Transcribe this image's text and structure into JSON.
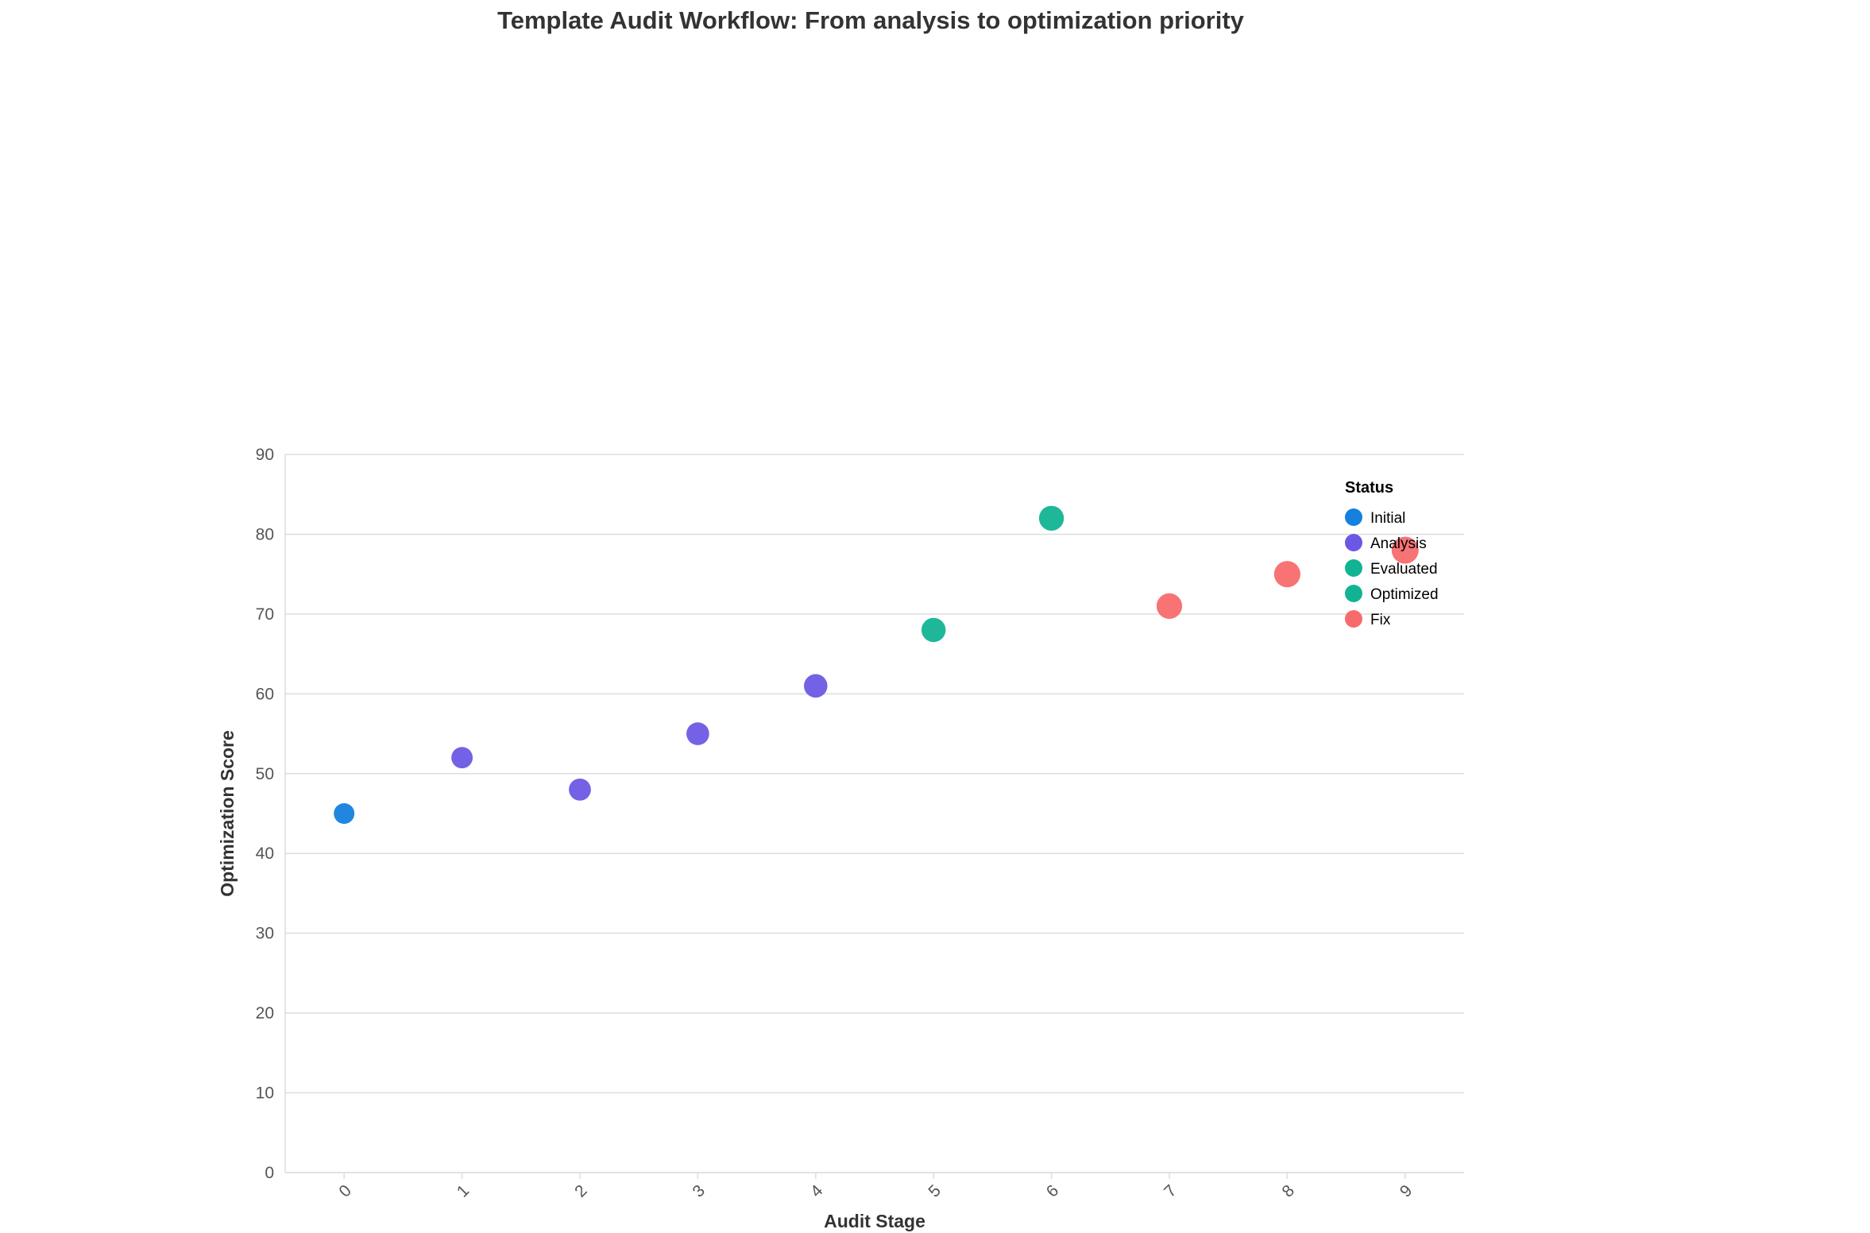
{
  "chart_data": {
    "type": "scatter",
    "title": "Template Audit Workflow: From analysis to optimization priority",
    "xlabel": "Audit Stage",
    "ylabel": "Optimization Score",
    "x_ticks": [
      "0",
      "1",
      "2",
      "3",
      "4",
      "5",
      "6",
      "7",
      "8",
      "9"
    ],
    "y_ticks": [
      "0",
      "10",
      "20",
      "30",
      "40",
      "50",
      "60",
      "70",
      "80",
      "90"
    ],
    "xlim": [
      -0.5,
      9.5
    ],
    "ylim": [
      0,
      90
    ],
    "grid": true,
    "legend": {
      "title": "Status",
      "placement": "top-right",
      "entries": [
        {
          "label": "Initial",
          "color": "#1580dd"
        },
        {
          "label": "Analysis",
          "color": "#6b58e5"
        },
        {
          "label": "Evaluated",
          "color": "#12b393"
        },
        {
          "label": "Optimized",
          "color": "#12b393"
        },
        {
          "label": "Fix",
          "color": "#f76b6d"
        }
      ]
    },
    "points": [
      {
        "x": 0,
        "y": 45,
        "status": "Initial",
        "color": "#1580dd"
      },
      {
        "x": 1,
        "y": 52,
        "status": "Analysis",
        "color": "#6b58e5"
      },
      {
        "x": 2,
        "y": 48,
        "status": "Analysis",
        "color": "#6b58e5"
      },
      {
        "x": 3,
        "y": 55,
        "status": "Analysis",
        "color": "#6b58e5"
      },
      {
        "x": 4,
        "y": 61,
        "status": "Analysis",
        "color": "#6b58e5"
      },
      {
        "x": 5,
        "y": 68,
        "status": "Evaluated",
        "color": "#12b393"
      },
      {
        "x": 6,
        "y": 82,
        "status": "Optimized",
        "color": "#12b393"
      },
      {
        "x": 7,
        "y": 71,
        "status": "Fix",
        "color": "#f76b6d"
      },
      {
        "x": 8,
        "y": 75,
        "status": "Fix",
        "color": "#f76b6d"
      },
      {
        "x": 9,
        "y": 78,
        "status": "Fix",
        "color": "#f76b6d"
      }
    ]
  }
}
